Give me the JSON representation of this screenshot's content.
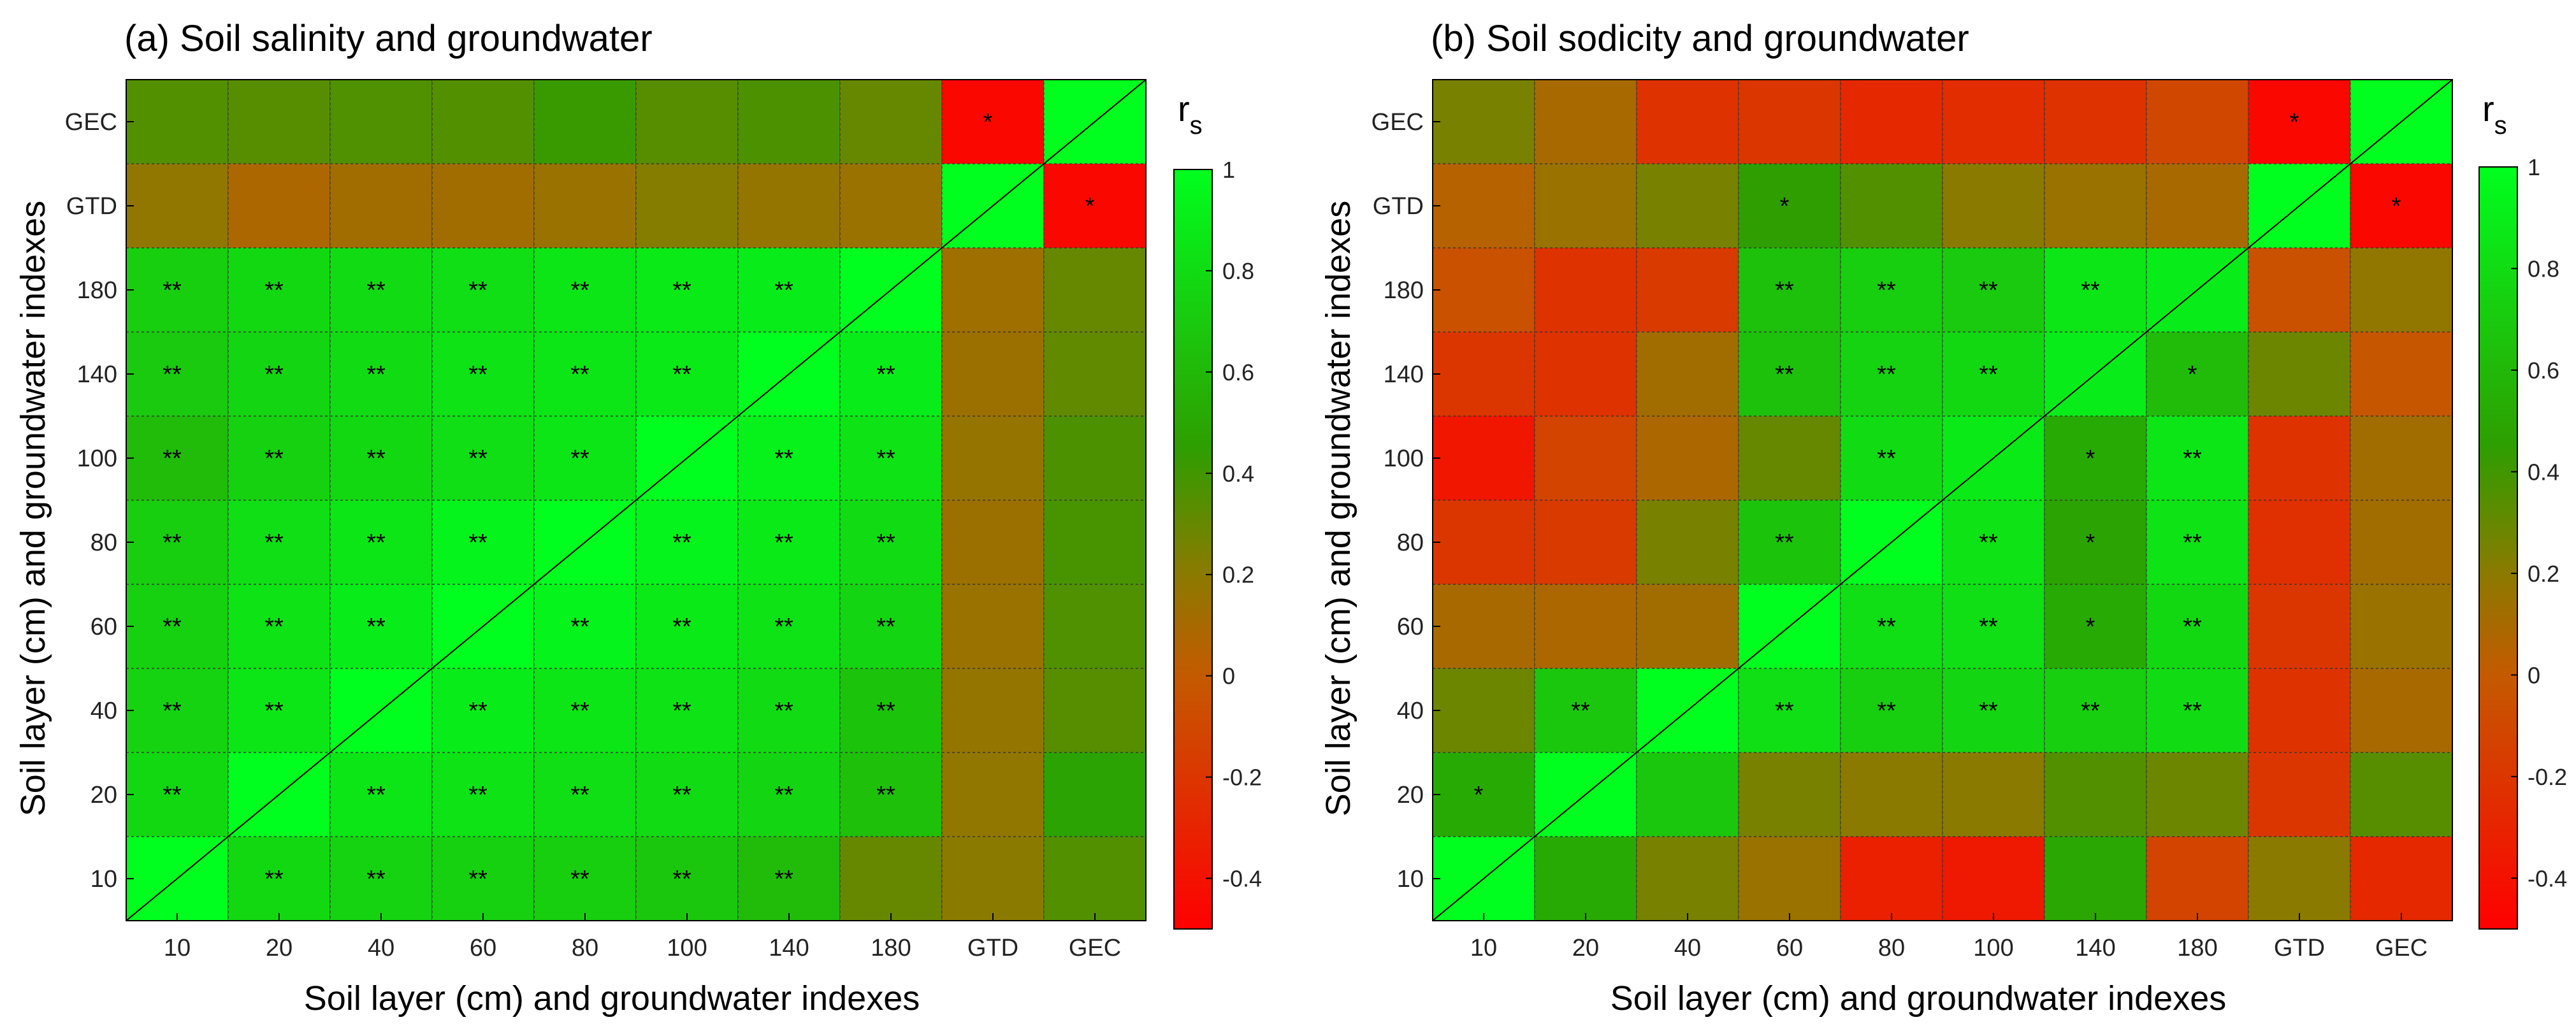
{
  "chart_data": [
    {
      "type": "heatmap",
      "title": "(a) Soil salinity and groundwater",
      "xlabel": "Soil layer (cm) and groundwater indexes",
      "ylabel": "Soil layer (cm) and groundwater indexes",
      "x_categories": [
        "10",
        "20",
        "40",
        "60",
        "80",
        "100",
        "140",
        "180",
        "GTD",
        "GEC"
      ],
      "y_categories": [
        "10",
        "20",
        "40",
        "60",
        "80",
        "100",
        "140",
        "180",
        "GTD",
        "GEC"
      ],
      "values": [
        [
          1.0,
          0.78,
          0.75,
          0.74,
          0.72,
          0.68,
          0.62,
          0.3,
          0.2,
          0.35
        ],
        [
          0.78,
          1.0,
          0.86,
          0.84,
          0.82,
          0.8,
          0.76,
          0.64,
          0.18,
          0.48
        ],
        [
          0.75,
          0.86,
          1.0,
          0.9,
          0.86,
          0.84,
          0.8,
          0.66,
          0.17,
          0.34
        ],
        [
          0.74,
          0.84,
          0.9,
          1.0,
          0.94,
          0.88,
          0.84,
          0.76,
          0.15,
          0.36
        ],
        [
          0.72,
          0.82,
          0.86,
          0.94,
          1.0,
          0.94,
          0.88,
          0.8,
          0.14,
          0.38
        ],
        [
          0.62,
          0.74,
          0.78,
          0.82,
          0.86,
          1.0,
          0.92,
          0.84,
          0.16,
          0.37
        ],
        [
          0.7,
          0.76,
          0.8,
          0.84,
          0.86,
          0.88,
          1.0,
          0.9,
          0.14,
          0.31
        ],
        [
          0.72,
          0.78,
          0.8,
          0.82,
          0.86,
          0.88,
          0.9,
          1.0,
          0.13,
          0.3
        ],
        [
          0.18,
          0.08,
          0.12,
          0.12,
          0.15,
          0.22,
          0.17,
          0.15,
          1.0,
          -0.46
        ],
        [
          0.35,
          0.34,
          0.36,
          0.35,
          0.42,
          0.34,
          0.37,
          0.3,
          -0.46,
          1.0
        ]
      ],
      "significance": [
        [
          "",
          "**",
          "**",
          "**",
          "**",
          "**",
          "**",
          "",
          "",
          ""
        ],
        [
          "**",
          "",
          "**",
          "**",
          "**",
          "**",
          "**",
          "**",
          "",
          ""
        ],
        [
          "**",
          "**",
          "",
          "**",
          "**",
          "**",
          "**",
          "**",
          "",
          ""
        ],
        [
          "**",
          "**",
          "**",
          "",
          "**",
          "**",
          "**",
          "**",
          "",
          ""
        ],
        [
          "**",
          "**",
          "**",
          "**",
          "",
          "**",
          "**",
          "**",
          "",
          ""
        ],
        [
          "**",
          "**",
          "**",
          "**",
          "**",
          "",
          "**",
          "**",
          "",
          ""
        ],
        [
          "**",
          "**",
          "**",
          "**",
          "**",
          "**",
          "",
          "**",
          "",
          ""
        ],
        [
          "**",
          "**",
          "**",
          "**",
          "**",
          "**",
          "**",
          "",
          "",
          ""
        ],
        [
          "",
          "",
          "",
          "",
          "",
          "",
          "",
          "",
          "",
          "*"
        ],
        [
          "",
          "",
          "",
          "",
          "",
          "",
          "",
          "",
          "*",
          ""
        ]
      ]
    },
    {
      "type": "heatmap",
      "title": "(b) Soil sodicity and groundwater",
      "xlabel": "Soil layer (cm) and groundwater indexes",
      "ylabel": "Soil layer (cm) and groundwater indexes",
      "x_categories": [
        "10",
        "20",
        "40",
        "60",
        "80",
        "100",
        "140",
        "180",
        "GTD",
        "GEC"
      ],
      "y_categories": [
        "10",
        "20",
        "40",
        "60",
        "80",
        "100",
        "140",
        "180",
        "GTD",
        "GEC"
      ],
      "values": [
        [
          1.0,
          0.52,
          0.25,
          0.15,
          -0.32,
          -0.36,
          0.5,
          -0.12,
          0.2,
          -0.28
        ],
        [
          0.52,
          1.0,
          0.68,
          0.25,
          0.2,
          0.2,
          0.35,
          0.28,
          -0.2,
          0.34
        ],
        [
          0.28,
          0.68,
          1.0,
          0.82,
          0.72,
          0.76,
          0.72,
          0.8,
          -0.22,
          0.1
        ],
        [
          0.1,
          0.08,
          0.12,
          1.0,
          0.82,
          0.82,
          0.52,
          0.78,
          -0.2,
          0.15
        ],
        [
          -0.2,
          -0.18,
          0.25,
          0.66,
          1.0,
          0.84,
          0.48,
          0.84,
          -0.24,
          0.12
        ],
        [
          -0.38,
          -0.12,
          0.08,
          0.3,
          0.8,
          0.88,
          0.52,
          0.86,
          -0.22,
          0.12
        ],
        [
          -0.2,
          -0.22,
          0.12,
          0.65,
          0.75,
          0.78,
          0.9,
          0.62,
          0.28,
          -0.02
        ],
        [
          -0.05,
          -0.22,
          -0.18,
          0.65,
          0.72,
          0.7,
          0.86,
          0.9,
          -0.05,
          0.18
        ],
        [
          0.05,
          0.15,
          0.25,
          0.45,
          0.35,
          0.2,
          0.15,
          0.1,
          1.0,
          -0.46
        ],
        [
          0.25,
          0.1,
          -0.22,
          -0.2,
          -0.28,
          -0.25,
          -0.22,
          -0.1,
          -0.46,
          1.0
        ]
      ],
      "significance": [
        [
          "",
          "",
          "",
          "",
          "",
          "",
          "",
          "",
          "",
          ""
        ],
        [
          "*",
          "",
          "",
          "",
          "",
          "",
          "",
          "",
          "",
          ""
        ],
        [
          "",
          "**",
          "",
          "**",
          "**",
          "**",
          "**",
          "**",
          "",
          ""
        ],
        [
          "",
          "",
          "",
          "",
          "**",
          "**",
          "*",
          "**",
          "",
          ""
        ],
        [
          "",
          "",
          "",
          "**",
          "",
          "**",
          "*",
          "**",
          "",
          ""
        ],
        [
          "",
          "",
          "",
          "",
          "**",
          "",
          "*",
          "**",
          "",
          ""
        ],
        [
          "",
          "",
          "",
          "**",
          "**",
          "**",
          "",
          "*",
          "",
          ""
        ],
        [
          "",
          "",
          "",
          "**",
          "**",
          "**",
          "**",
          "",
          "",
          ""
        ],
        [
          "",
          "",
          "",
          "*",
          "",
          "",
          "",
          "",
          "",
          "*"
        ],
        [
          "",
          "",
          "",
          "",
          "",
          "",
          "",
          "",
          "*",
          ""
        ]
      ]
    }
  ],
  "colorbar": {
    "label": "r",
    "label_subscript": "s",
    "range": [
      -0.5,
      1.0
    ],
    "ticks": [
      -0.4,
      -0.2,
      0,
      0.2,
      0.4,
      0.6,
      0.8,
      1
    ],
    "tick_labels": [
      "-0.4",
      "-0.2",
      "0",
      "0.2",
      "0.4",
      "0.6",
      "0.8",
      "1"
    ],
    "stops": [
      {
        "value": -0.5,
        "color": "#ff0000"
      },
      {
        "value": 0.0,
        "color": "#c45a00"
      },
      {
        "value": 0.2,
        "color": "#8b7a00"
      },
      {
        "value": 0.45,
        "color": "#2e9e00"
      },
      {
        "value": 1.0,
        "color": "#00ff1e"
      }
    ]
  }
}
